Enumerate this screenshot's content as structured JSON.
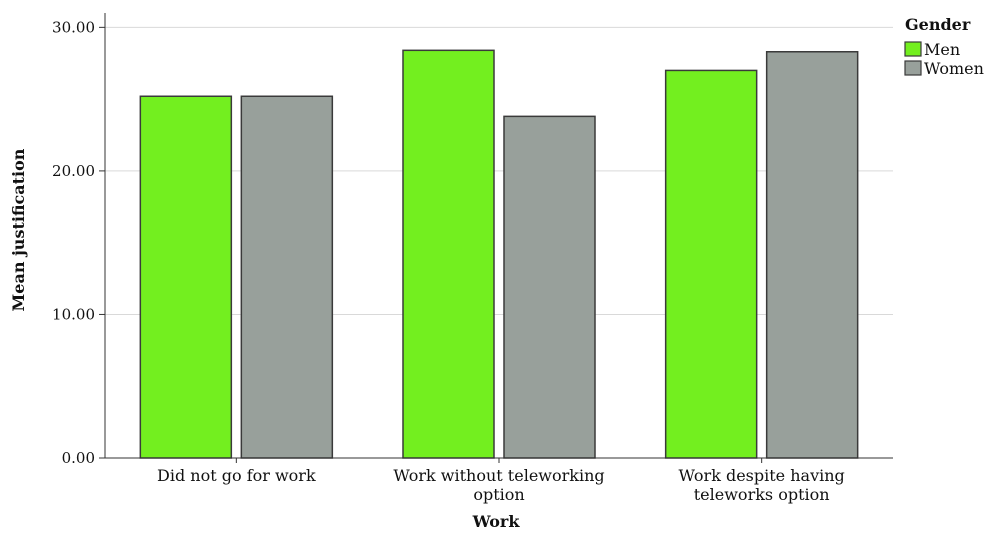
{
  "chart_data": {
    "type": "bar",
    "categories": [
      [
        "Did not go for work"
      ],
      [
        "Work without teleworking",
        "option"
      ],
      [
        "Work despite having",
        "teleworks option"
      ]
    ],
    "series": [
      {
        "name": "Men",
        "values": [
          25.2,
          28.4,
          27.0
        ],
        "color": "#73ef1f"
      },
      {
        "name": "Women",
        "values": [
          25.2,
          23.8,
          28.3
        ],
        "color": "#98a09b"
      }
    ],
    "xlabel": "Work",
    "ylabel": "Mean justification",
    "ylim": [
      0,
      30
    ],
    "yticks": [
      "0.00",
      "10.00",
      "20.00",
      "30.00"
    ],
    "ytick_values": [
      0,
      10,
      20,
      30
    ],
    "grid": true,
    "legend": {
      "title": "Gender",
      "position": "top-right"
    }
  }
}
